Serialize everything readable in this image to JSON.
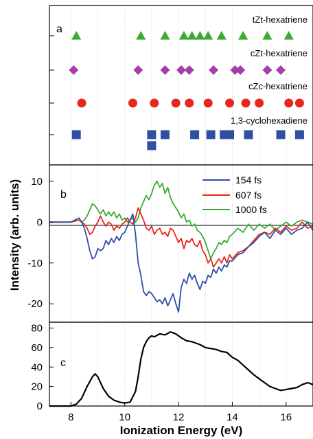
{
  "chart_data": [
    {
      "panel": "a",
      "type": "scatter",
      "xlabel": "Ionization Energy (eV)",
      "xlim": [
        7.2,
        17.0
      ],
      "series": [
        {
          "name": "tZt-hexatriene",
          "marker": "triangle",
          "color": "#3aaa35",
          "x": [
            8.2,
            10.6,
            11.5,
            12.2,
            12.5,
            12.8,
            13.1,
            13.6,
            14.4,
            15.3,
            16.1
          ],
          "level": [
            0,
            0,
            0,
            0,
            0,
            0,
            0,
            0,
            0,
            0,
            0
          ]
        },
        {
          "name": "cZt-hexatriene",
          "marker": "diamond",
          "color": "#a63ea9",
          "x": [
            8.1,
            10.5,
            11.5,
            12.1,
            12.4,
            13.3,
            14.1,
            14.3,
            15.3,
            15.8
          ],
          "level": [
            0,
            0,
            0,
            0,
            0,
            0,
            0,
            0,
            0,
            0
          ]
        },
        {
          "name": "cZc-hexatriene",
          "marker": "circle",
          "color": "#e8261c",
          "x": [
            8.4,
            10.3,
            11.1,
            11.9,
            12.4,
            13.1,
            13.9,
            14.5,
            15.0,
            16.1,
            16.5
          ],
          "level": [
            0,
            0,
            0,
            0,
            0,
            0,
            0,
            0,
            0,
            0,
            0
          ]
        },
        {
          "name": "1,3-cyclohexadiene",
          "marker": "square",
          "color": "#2f4fa5",
          "x": [
            8.2,
            11.0,
            11.0,
            11.5,
            12.6,
            13.2,
            13.7,
            13.9,
            14.6,
            15.8,
            16.5
          ],
          "level": [
            0,
            0,
            1,
            0,
            0,
            0,
            0,
            0,
            0,
            0,
            0
          ]
        }
      ]
    },
    {
      "panel": "b",
      "type": "line",
      "ylabel": "Intensity (arb. units)",
      "xlim": [
        7.2,
        17.0
      ],
      "ylim": [
        -24.5,
        14
      ],
      "yticks": [
        10,
        0,
        -10,
        -20
      ],
      "zero_line": true,
      "legend": "top-right",
      "series": [
        {
          "name": "154 fs",
          "color": "#2f4fa5",
          "x": [
            7.2,
            8.0,
            8.3,
            8.4,
            8.5,
            8.6,
            8.7,
            8.8,
            8.9,
            9.0,
            9.1,
            9.2,
            9.3,
            9.4,
            9.5,
            9.6,
            9.7,
            9.8,
            9.9,
            10.0,
            10.1,
            10.2,
            10.3,
            10.4,
            10.5,
            10.6,
            10.7,
            10.8,
            10.9,
            11.0,
            11.1,
            11.2,
            11.3,
            11.4,
            11.5,
            11.6,
            11.7,
            11.8,
            11.9,
            12.0,
            12.1,
            12.2,
            12.3,
            12.4,
            12.5,
            12.6,
            12.7,
            12.8,
            12.9,
            13.0,
            13.1,
            13.2,
            13.3,
            13.4,
            13.5,
            13.6,
            13.7,
            13.8,
            13.9,
            14.0,
            14.2,
            14.4,
            14.6,
            14.8,
            15.0,
            15.2,
            15.4,
            15.6,
            15.8,
            16.0,
            16.2,
            16.4,
            16.6,
            16.8,
            17.0
          ],
          "y": [
            0,
            0,
            1,
            0,
            -1.5,
            -4,
            -7,
            -9,
            -8.5,
            -6.5,
            -7,
            -6.5,
            -4.5,
            -5.5,
            -4,
            -5,
            -3.5,
            -4.5,
            -3,
            -2.5,
            -1,
            0.5,
            2,
            -3,
            -10,
            -13,
            -17,
            -18,
            -17,
            -17.5,
            -18.5,
            -19.5,
            -19,
            -20,
            -18.5,
            -20.5,
            -19,
            -17.5,
            -20,
            -22,
            -16,
            -14,
            -15,
            -12.5,
            -14,
            -13,
            -15,
            -16.5,
            -14.5,
            -15,
            -13,
            -13.5,
            -11.5,
            -12.5,
            -11,
            -12,
            -10.5,
            -11,
            -9.5,
            -9.5,
            -8,
            -7.5,
            -6,
            -5,
            -3.5,
            -2.5,
            -4,
            -2,
            -3,
            -1.5,
            -3,
            -2,
            -1.5,
            0,
            -2
          ]
        },
        {
          "name": "607 fs",
          "color": "#e8261c",
          "x": [
            7.2,
            8.0,
            8.3,
            8.4,
            8.5,
            8.6,
            8.7,
            8.8,
            8.9,
            9.0,
            9.1,
            9.2,
            9.3,
            9.4,
            9.5,
            9.6,
            9.7,
            9.8,
            9.9,
            10.0,
            10.1,
            10.2,
            10.3,
            10.4,
            10.5,
            10.6,
            10.7,
            10.8,
            10.9,
            11.0,
            11.1,
            11.2,
            11.3,
            11.4,
            11.5,
            11.6,
            11.7,
            11.8,
            11.9,
            12.0,
            12.1,
            12.2,
            12.3,
            12.4,
            12.5,
            12.6,
            12.7,
            12.8,
            12.9,
            13.0,
            13.1,
            13.2,
            13.3,
            13.4,
            13.5,
            13.6,
            13.7,
            13.8,
            13.9,
            14.0,
            14.2,
            14.4,
            14.6,
            14.8,
            15.0,
            15.2,
            15.4,
            15.6,
            15.8,
            16.0,
            16.2,
            16.4,
            16.6,
            16.8,
            17.0
          ],
          "y": [
            0,
            0,
            0.5,
            0,
            -0.5,
            -1.5,
            -3,
            -2.5,
            -1,
            0,
            1.5,
            0,
            -1,
            0,
            -0.5,
            -2,
            -1,
            -1.5,
            -0.5,
            0,
            1,
            0,
            -0.5,
            1,
            3.5,
            2,
            0.5,
            -1.5,
            -2,
            -1,
            -3,
            -2,
            -1.5,
            -3,
            -2.5,
            -3.5,
            -1.5,
            -2,
            -3.5,
            -5,
            -4,
            -6.5,
            -4.5,
            -5,
            -4,
            -5.5,
            -6,
            -4.5,
            -7,
            -8,
            -10,
            -9,
            -11,
            -10,
            -9,
            -10,
            -8.5,
            -10,
            -8,
            -9,
            -7.5,
            -7,
            -6,
            -4.5,
            -3,
            -2.5,
            -3,
            -1.5,
            -2.5,
            -1,
            -2,
            -1.5,
            0,
            -1.5,
            -1
          ]
        },
        {
          "name": "1000 fs",
          "color": "#3aaa35",
          "x": [
            7.2,
            8.0,
            8.3,
            8.4,
            8.5,
            8.6,
            8.7,
            8.8,
            8.9,
            9.0,
            9.1,
            9.2,
            9.3,
            9.4,
            9.5,
            9.6,
            9.7,
            9.8,
            9.9,
            10.0,
            10.1,
            10.2,
            10.3,
            10.4,
            10.5,
            10.6,
            10.7,
            10.8,
            10.9,
            11.0,
            11.1,
            11.2,
            11.3,
            11.4,
            11.5,
            11.6,
            11.7,
            11.8,
            11.9,
            12.0,
            12.1,
            12.2,
            12.3,
            12.4,
            12.5,
            12.6,
            12.7,
            12.8,
            12.9,
            13.0,
            13.1,
            13.2,
            13.3,
            13.4,
            13.5,
            13.6,
            13.7,
            13.8,
            13.9,
            14.0,
            14.2,
            14.4,
            14.6,
            14.8,
            15.0,
            15.2,
            15.4,
            15.6,
            15.8,
            16.0,
            16.2,
            16.4,
            16.6,
            16.8,
            17.0
          ],
          "y": [
            0,
            0,
            0.5,
            0,
            0.5,
            1.5,
            3,
            4.5,
            4,
            3,
            2,
            3,
            1.5,
            2.5,
            1.5,
            2.5,
            1,
            2,
            0.5,
            1,
            0,
            0.5,
            1,
            0,
            1,
            3.5,
            5,
            6.5,
            5.5,
            7,
            9,
            10,
            8.5,
            9.5,
            7,
            8.5,
            6,
            4.5,
            3.5,
            2.5,
            1,
            2,
            0,
            0.5,
            -1,
            -0.5,
            -2,
            -2.5,
            -3.5,
            -5,
            -7,
            -9,
            -7.5,
            -6.5,
            -5,
            -5.5,
            -4.5,
            -5,
            -3.5,
            -3,
            -1.5,
            -2.5,
            -0.5,
            -2,
            -0.5,
            -1.5,
            -0.5,
            -2,
            -1,
            0,
            -1,
            0,
            0.5,
            0,
            -0.5
          ]
        }
      ]
    },
    {
      "panel": "c",
      "type": "line",
      "xlabel": "Ionization Energy (eV)",
      "xlim": [
        7.2,
        17.0
      ],
      "ylim": [
        0,
        86
      ],
      "xticks": [
        8,
        10,
        12,
        14,
        16
      ],
      "yticks": [
        0,
        20,
        40,
        60,
        80
      ],
      "series": [
        {
          "name": "",
          "color": "#000000",
          "x": [
            7.2,
            8.0,
            8.2,
            8.4,
            8.6,
            8.8,
            8.9,
            9.0,
            9.2,
            9.4,
            9.6,
            9.8,
            10.0,
            10.2,
            10.4,
            10.5,
            10.6,
            10.7,
            10.8,
            10.9,
            11.0,
            11.1,
            11.3,
            11.5,
            11.7,
            11.9,
            12.1,
            12.3,
            12.5,
            12.8,
            13.0,
            13.2,
            13.4,
            13.6,
            13.8,
            14.0,
            14.2,
            14.4,
            14.6,
            14.8,
            15.0,
            15.2,
            15.4,
            15.6,
            15.8,
            16.0,
            16.2,
            16.4,
            16.6,
            16.8,
            17.0
          ],
          "y": [
            0,
            0,
            2,
            8,
            20,
            30,
            33,
            30,
            18,
            10,
            6,
            4,
            3,
            4,
            15,
            30,
            48,
            60,
            66,
            70,
            72,
            71,
            74,
            73,
            76,
            74,
            70,
            67,
            66,
            63,
            60,
            59,
            58,
            56,
            55,
            50,
            47,
            42,
            37,
            32,
            28,
            24,
            20,
            18,
            16,
            17,
            18,
            19,
            22,
            24,
            22
          ]
        }
      ]
    }
  ]
}
